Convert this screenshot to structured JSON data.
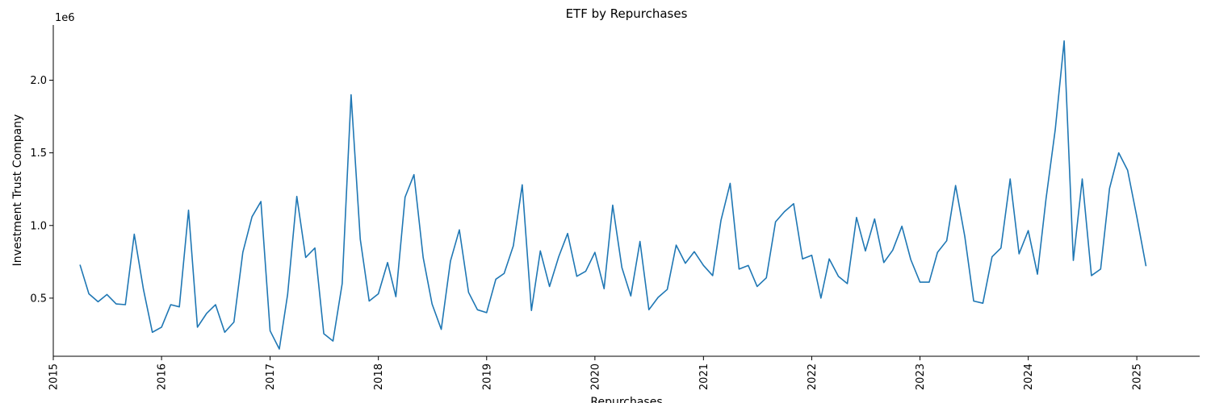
{
  "chart_data": {
    "type": "line",
    "title": "ETF by Repurchases",
    "xlabel": "Repurchases",
    "ylabel": "Investment Trust Company",
    "y_offset_label": "1e6",
    "x_tick_labels": [
      "2015",
      "2016",
      "2017",
      "2018",
      "2019",
      "2020",
      "2021",
      "2022",
      "2023",
      "2024",
      "2025"
    ],
    "y_tick_values": [
      500000,
      1000000,
      1500000,
      2000000
    ],
    "y_tick_labels": [
      "0.5",
      "1.0",
      "1.5",
      "2.0"
    ],
    "xlim": [
      "2015-01-01",
      "2025-08-01"
    ],
    "ylim": [
      100000,
      2380000
    ],
    "grid": false,
    "line_color": "#1f77b4",
    "series": [
      {
        "x": [
          "2015-04",
          "2015-05",
          "2015-06",
          "2015-07",
          "2015-08",
          "2015-09",
          "2015-10",
          "2015-11",
          "2015-12",
          "2016-01",
          "2016-02",
          "2016-03",
          "2016-04",
          "2016-05",
          "2016-06",
          "2016-07",
          "2016-08",
          "2016-09",
          "2016-10",
          "2016-11",
          "2016-12",
          "2017-01",
          "2017-02",
          "2017-03",
          "2017-04",
          "2017-05",
          "2017-06",
          "2017-07",
          "2017-08",
          "2017-09",
          "2017-10",
          "2017-11",
          "2017-12",
          "2018-01",
          "2018-02",
          "2018-03",
          "2018-04",
          "2018-05",
          "2018-06",
          "2018-07",
          "2018-08",
          "2018-09",
          "2018-10",
          "2018-11",
          "2018-12",
          "2019-01",
          "2019-02",
          "2019-03",
          "2019-04",
          "2019-05",
          "2019-06",
          "2019-07",
          "2019-08",
          "2019-09",
          "2019-10",
          "2019-11",
          "2019-12",
          "2020-01",
          "2020-02",
          "2020-03",
          "2020-04",
          "2020-05",
          "2020-06",
          "2020-07",
          "2020-08",
          "2020-09",
          "2020-10",
          "2020-11",
          "2020-12",
          "2021-01",
          "2021-02",
          "2021-03",
          "2021-04",
          "2021-05",
          "2021-06",
          "2021-07",
          "2021-08",
          "2021-09",
          "2021-10",
          "2021-11",
          "2021-12",
          "2022-01",
          "2022-02",
          "2022-03",
          "2022-04",
          "2022-05",
          "2022-06",
          "2022-07",
          "2022-08",
          "2022-09",
          "2022-10",
          "2022-11",
          "2022-12",
          "2023-01",
          "2023-02",
          "2023-03",
          "2023-04",
          "2023-05",
          "2023-06",
          "2023-07",
          "2023-08",
          "2023-09",
          "2023-10",
          "2023-11",
          "2023-12",
          "2024-01",
          "2024-02",
          "2024-03",
          "2024-04",
          "2024-05",
          "2024-06",
          "2024-07",
          "2024-08",
          "2024-09",
          "2024-10",
          "2024-11",
          "2024-12",
          "2025-01",
          "2025-02"
        ],
        "values": [
          730000,
          530000,
          475000,
          525000,
          460000,
          455000,
          940000,
          560000,
          265000,
          300000,
          455000,
          440000,
          1105000,
          300000,
          395000,
          455000,
          265000,
          335000,
          815000,
          1060000,
          1165000,
          275000,
          150000,
          525000,
          1200000,
          780000,
          845000,
          255000,
          205000,
          600000,
          1900000,
          905000,
          480000,
          530000,
          745000,
          510000,
          1195000,
          1350000,
          780000,
          460000,
          285000,
          755000,
          970000,
          540000,
          420000,
          400000,
          630000,
          670000,
          860000,
          1280000,
          415000,
          825000,
          580000,
          785000,
          945000,
          650000,
          685000,
          815000,
          565000,
          1140000,
          710000,
          515000,
          890000,
          420000,
          505000,
          560000,
          865000,
          740000,
          820000,
          725000,
          655000,
          1035000,
          1290000,
          700000,
          725000,
          580000,
          640000,
          1025000,
          1095000,
          1150000,
          770000,
          795000,
          500000,
          770000,
          650000,
          600000,
          1055000,
          825000,
          1045000,
          745000,
          830000,
          995000,
          765000,
          610000,
          610000,
          815000,
          895000,
          1275000,
          925000,
          480000,
          465000,
          785000,
          845000,
          1320000,
          805000,
          965000,
          665000,
          1185000,
          1660000,
          2270000,
          760000,
          1320000,
          655000,
          700000,
          1255000,
          1500000,
          1380000,
          1060000,
          720000
        ]
      }
    ]
  }
}
